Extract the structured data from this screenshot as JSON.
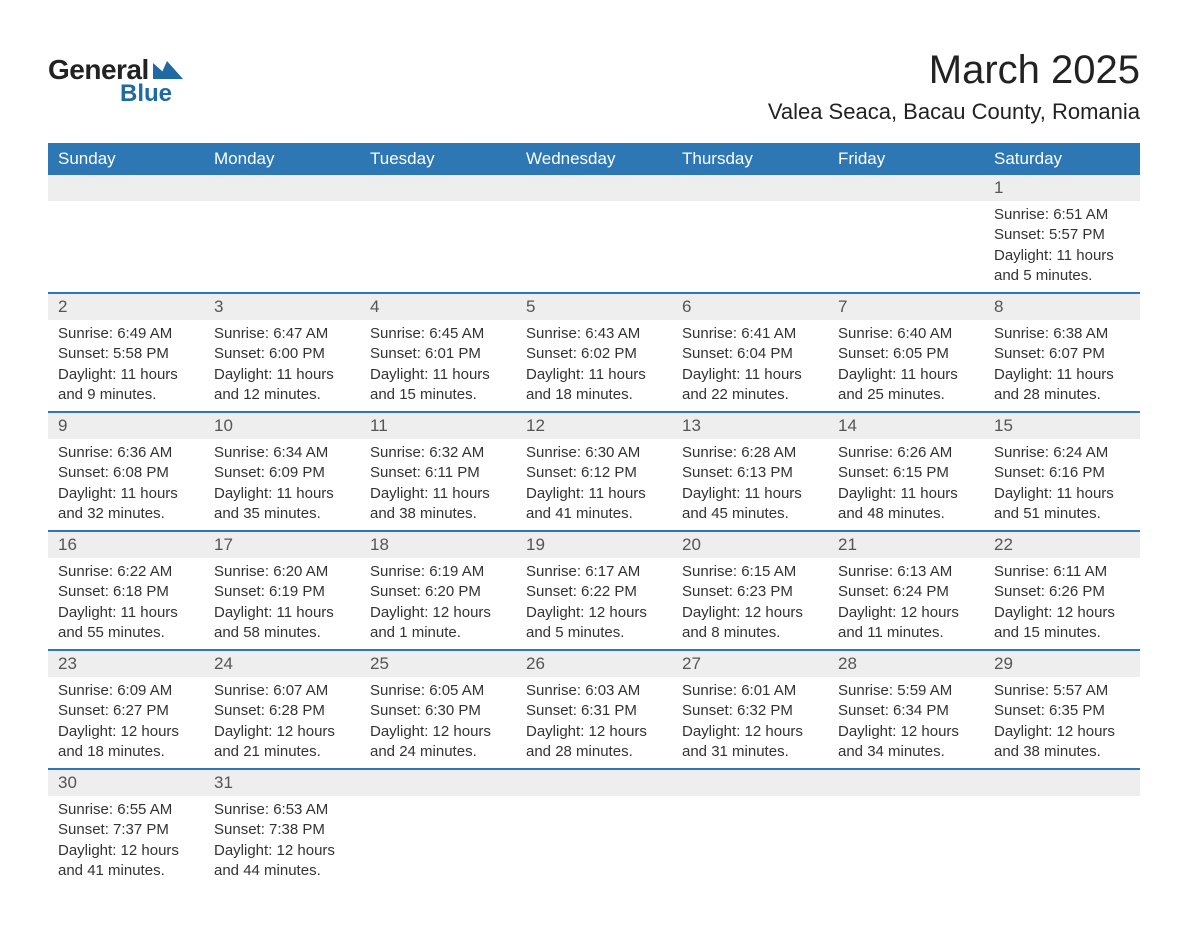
{
  "branding": {
    "word1": "General",
    "word2": "Blue",
    "triangle_color": "#1f6aa5",
    "text_color_dark": "#222222",
    "text_color_blue": "#1f6aa5"
  },
  "header": {
    "month_title": "March 2025",
    "location": "Valea Seaca, Bacau County, Romania"
  },
  "calendar": {
    "header_bg": "#2d77b5",
    "header_fg": "#ffffff",
    "row_border_color": "#2d77b5",
    "daynum_bg": "#eeeeee",
    "columns": [
      "Sunday",
      "Monday",
      "Tuesday",
      "Wednesday",
      "Thursday",
      "Friday",
      "Saturday"
    ],
    "weeks": [
      [
        null,
        null,
        null,
        null,
        null,
        null,
        {
          "n": "1",
          "sunrise": "Sunrise: 6:51 AM",
          "sunset": "Sunset: 5:57 PM",
          "day1": "Daylight: 11 hours",
          "day2": "and 5 minutes."
        }
      ],
      [
        {
          "n": "2",
          "sunrise": "Sunrise: 6:49 AM",
          "sunset": "Sunset: 5:58 PM",
          "day1": "Daylight: 11 hours",
          "day2": "and 9 minutes."
        },
        {
          "n": "3",
          "sunrise": "Sunrise: 6:47 AM",
          "sunset": "Sunset: 6:00 PM",
          "day1": "Daylight: 11 hours",
          "day2": "and 12 minutes."
        },
        {
          "n": "4",
          "sunrise": "Sunrise: 6:45 AM",
          "sunset": "Sunset: 6:01 PM",
          "day1": "Daylight: 11 hours",
          "day2": "and 15 minutes."
        },
        {
          "n": "5",
          "sunrise": "Sunrise: 6:43 AM",
          "sunset": "Sunset: 6:02 PM",
          "day1": "Daylight: 11 hours",
          "day2": "and 18 minutes."
        },
        {
          "n": "6",
          "sunrise": "Sunrise: 6:41 AM",
          "sunset": "Sunset: 6:04 PM",
          "day1": "Daylight: 11 hours",
          "day2": "and 22 minutes."
        },
        {
          "n": "7",
          "sunrise": "Sunrise: 6:40 AM",
          "sunset": "Sunset: 6:05 PM",
          "day1": "Daylight: 11 hours",
          "day2": "and 25 minutes."
        },
        {
          "n": "8",
          "sunrise": "Sunrise: 6:38 AM",
          "sunset": "Sunset: 6:07 PM",
          "day1": "Daylight: 11 hours",
          "day2": "and 28 minutes."
        }
      ],
      [
        {
          "n": "9",
          "sunrise": "Sunrise: 6:36 AM",
          "sunset": "Sunset: 6:08 PM",
          "day1": "Daylight: 11 hours",
          "day2": "and 32 minutes."
        },
        {
          "n": "10",
          "sunrise": "Sunrise: 6:34 AM",
          "sunset": "Sunset: 6:09 PM",
          "day1": "Daylight: 11 hours",
          "day2": "and 35 minutes."
        },
        {
          "n": "11",
          "sunrise": "Sunrise: 6:32 AM",
          "sunset": "Sunset: 6:11 PM",
          "day1": "Daylight: 11 hours",
          "day2": "and 38 minutes."
        },
        {
          "n": "12",
          "sunrise": "Sunrise: 6:30 AM",
          "sunset": "Sunset: 6:12 PM",
          "day1": "Daylight: 11 hours",
          "day2": "and 41 minutes."
        },
        {
          "n": "13",
          "sunrise": "Sunrise: 6:28 AM",
          "sunset": "Sunset: 6:13 PM",
          "day1": "Daylight: 11 hours",
          "day2": "and 45 minutes."
        },
        {
          "n": "14",
          "sunrise": "Sunrise: 6:26 AM",
          "sunset": "Sunset: 6:15 PM",
          "day1": "Daylight: 11 hours",
          "day2": "and 48 minutes."
        },
        {
          "n": "15",
          "sunrise": "Sunrise: 6:24 AM",
          "sunset": "Sunset: 6:16 PM",
          "day1": "Daylight: 11 hours",
          "day2": "and 51 minutes."
        }
      ],
      [
        {
          "n": "16",
          "sunrise": "Sunrise: 6:22 AM",
          "sunset": "Sunset: 6:18 PM",
          "day1": "Daylight: 11 hours",
          "day2": "and 55 minutes."
        },
        {
          "n": "17",
          "sunrise": "Sunrise: 6:20 AM",
          "sunset": "Sunset: 6:19 PM",
          "day1": "Daylight: 11 hours",
          "day2": "and 58 minutes."
        },
        {
          "n": "18",
          "sunrise": "Sunrise: 6:19 AM",
          "sunset": "Sunset: 6:20 PM",
          "day1": "Daylight: 12 hours",
          "day2": "and 1 minute."
        },
        {
          "n": "19",
          "sunrise": "Sunrise: 6:17 AM",
          "sunset": "Sunset: 6:22 PM",
          "day1": "Daylight: 12 hours",
          "day2": "and 5 minutes."
        },
        {
          "n": "20",
          "sunrise": "Sunrise: 6:15 AM",
          "sunset": "Sunset: 6:23 PM",
          "day1": "Daylight: 12 hours",
          "day2": "and 8 minutes."
        },
        {
          "n": "21",
          "sunrise": "Sunrise: 6:13 AM",
          "sunset": "Sunset: 6:24 PM",
          "day1": "Daylight: 12 hours",
          "day2": "and 11 minutes."
        },
        {
          "n": "22",
          "sunrise": "Sunrise: 6:11 AM",
          "sunset": "Sunset: 6:26 PM",
          "day1": "Daylight: 12 hours",
          "day2": "and 15 minutes."
        }
      ],
      [
        {
          "n": "23",
          "sunrise": "Sunrise: 6:09 AM",
          "sunset": "Sunset: 6:27 PM",
          "day1": "Daylight: 12 hours",
          "day2": "and 18 minutes."
        },
        {
          "n": "24",
          "sunrise": "Sunrise: 6:07 AM",
          "sunset": "Sunset: 6:28 PM",
          "day1": "Daylight: 12 hours",
          "day2": "and 21 minutes."
        },
        {
          "n": "25",
          "sunrise": "Sunrise: 6:05 AM",
          "sunset": "Sunset: 6:30 PM",
          "day1": "Daylight: 12 hours",
          "day2": "and 24 minutes."
        },
        {
          "n": "26",
          "sunrise": "Sunrise: 6:03 AM",
          "sunset": "Sunset: 6:31 PM",
          "day1": "Daylight: 12 hours",
          "day2": "and 28 minutes."
        },
        {
          "n": "27",
          "sunrise": "Sunrise: 6:01 AM",
          "sunset": "Sunset: 6:32 PM",
          "day1": "Daylight: 12 hours",
          "day2": "and 31 minutes."
        },
        {
          "n": "28",
          "sunrise": "Sunrise: 5:59 AM",
          "sunset": "Sunset: 6:34 PM",
          "day1": "Daylight: 12 hours",
          "day2": "and 34 minutes."
        },
        {
          "n": "29",
          "sunrise": "Sunrise: 5:57 AM",
          "sunset": "Sunset: 6:35 PM",
          "day1": "Daylight: 12 hours",
          "day2": "and 38 minutes."
        }
      ],
      [
        {
          "n": "30",
          "sunrise": "Sunrise: 6:55 AM",
          "sunset": "Sunset: 7:37 PM",
          "day1": "Daylight: 12 hours",
          "day2": "and 41 minutes."
        },
        {
          "n": "31",
          "sunrise": "Sunrise: 6:53 AM",
          "sunset": "Sunset: 7:38 PM",
          "day1": "Daylight: 12 hours",
          "day2": "and 44 minutes."
        },
        null,
        null,
        null,
        null,
        null
      ]
    ]
  }
}
